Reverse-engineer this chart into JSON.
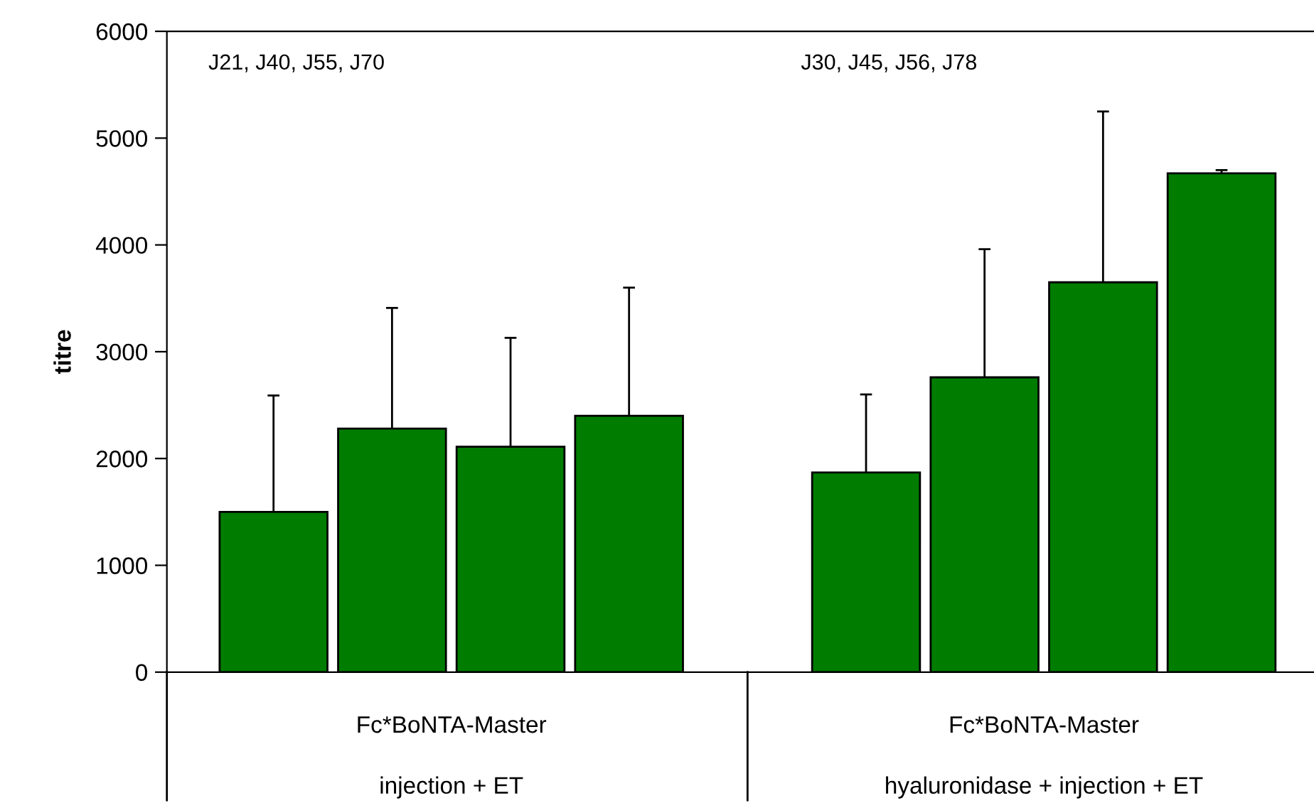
{
  "chart_data": {
    "type": "bar",
    "ylabel": "titre",
    "categories": [
      null,
      null,
      null,
      null,
      null,
      null,
      null,
      null,
      null
    ],
    "values": [
      1500,
      2280,
      2110,
      2400,
      null,
      1870,
      2760,
      3650,
      4670
    ],
    "errors": [
      [
        1500,
        2590
      ],
      [
        2280,
        3410
      ],
      [
        2110,
        3130
      ],
      [
        2400,
        3600
      ],
      null,
      [
        1870,
        2600
      ],
      [
        2760,
        3960
      ],
      [
        3650,
        5250
      ],
      [
        4670,
        4700
      ]
    ],
    "color": "#007c00",
    "ylim": [
      0,
      6000
    ],
    "yticks": [
      0,
      1000,
      2000,
      3000,
      4000,
      5000,
      6000
    ],
    "grid": false,
    "legend": false,
    "annotations": [
      "J21, J40, J55, J70",
      "J30, J45, J56, J78",
      "Fc*BoNTA-Master",
      "injection + ET",
      "Fc*BoNTA-Master",
      "hyaluronidase + injection + ET"
    ]
  }
}
